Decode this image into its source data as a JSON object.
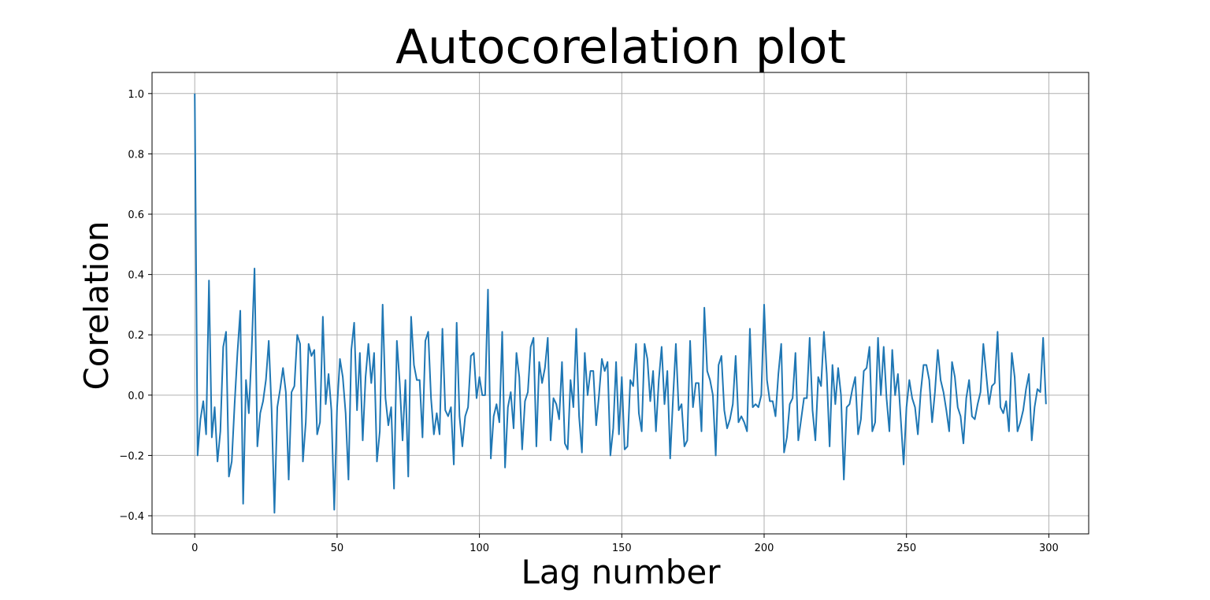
{
  "chart_data": {
    "type": "line",
    "title": "Autocorelation plot",
    "xlabel": "Lag number",
    "ylabel": "Corelation",
    "xlim": [
      -15,
      314
    ],
    "ylim": [
      -0.46,
      1.07
    ],
    "x_ticks": [
      0,
      50,
      100,
      150,
      200,
      250,
      300
    ],
    "y_ticks": [
      -0.4,
      -0.2,
      0.0,
      0.2,
      0.4,
      0.6,
      0.8,
      1.0
    ],
    "x_tick_labels": [
      "0",
      "50",
      "100",
      "150",
      "200",
      "250",
      "300"
    ],
    "y_tick_labels": [
      "−0.4",
      "−0.2",
      "0.0",
      "0.2",
      "0.4",
      "0.6",
      "0.8",
      "1.0"
    ],
    "grid": true,
    "line_color": "#1f77b4",
    "series": [
      {
        "x_start": 0,
        "x_step": 1,
        "values": [
          1.0,
          -0.2,
          -0.08,
          -0.02,
          -0.13,
          0.38,
          -0.14,
          -0.04,
          -0.22,
          -0.12,
          0.16,
          0.21,
          -0.27,
          -0.22,
          -0.03,
          0.14,
          0.28,
          -0.36,
          0.05,
          -0.06,
          0.15,
          0.42,
          -0.17,
          -0.06,
          -0.02,
          0.05,
          0.18,
          -0.05,
          -0.39,
          -0.04,
          0.02,
          0.09,
          0.01,
          -0.28,
          0.01,
          0.03,
          0.2,
          0.17,
          -0.22,
          -0.09,
          0.17,
          0.13,
          0.15,
          -0.13,
          -0.09,
          0.26,
          -0.03,
          0.07,
          -0.05,
          -0.38,
          -0.04,
          0.12,
          0.06,
          -0.06,
          -0.28,
          0.15,
          0.24,
          -0.05,
          0.14,
          -0.15,
          0.06,
          0.17,
          0.04,
          0.14,
          -0.22,
          -0.12,
          0.3,
          -0.01,
          -0.1,
          -0.04,
          -0.31,
          0.18,
          0.04,
          -0.15,
          0.05,
          -0.27,
          0.26,
          0.1,
          0.05,
          0.05,
          -0.14,
          0.18,
          0.21,
          -0.01,
          -0.13,
          -0.06,
          -0.13,
          0.22,
          -0.05,
          -0.07,
          -0.04,
          -0.23,
          0.24,
          -0.07,
          -0.17,
          -0.07,
          -0.04,
          0.13,
          0.14,
          -0.01,
          0.06,
          0.0,
          0.0,
          0.35,
          -0.21,
          -0.07,
          -0.03,
          -0.09,
          0.21,
          -0.24,
          -0.04,
          0.01,
          -0.11,
          0.14,
          0.06,
          -0.18,
          -0.02,
          0.01,
          0.16,
          0.19,
          -0.17,
          0.11,
          0.04,
          0.09,
          0.19,
          -0.15,
          -0.01,
          -0.03,
          -0.08,
          0.11,
          -0.16,
          -0.18,
          0.05,
          -0.04,
          0.22,
          -0.07,
          -0.19,
          0.14,
          0.0,
          0.08,
          0.08,
          -0.1,
          0.0,
          0.12,
          0.08,
          0.11,
          -0.2,
          -0.11,
          0.11,
          -0.13,
          0.06,
          -0.18,
          -0.17,
          0.05,
          0.03,
          0.17,
          -0.06,
          -0.12,
          0.17,
          0.12,
          -0.02,
          0.08,
          -0.12,
          0.05,
          0.16,
          -0.03,
          0.08,
          -0.21,
          -0.01,
          0.17,
          -0.05,
          -0.03,
          -0.17,
          -0.15,
          0.18,
          -0.04,
          0.04,
          0.04,
          -0.12,
          0.29,
          0.08,
          0.05,
          0.0,
          -0.2,
          0.1,
          0.13,
          -0.05,
          -0.11,
          -0.08,
          -0.03,
          0.13,
          -0.09,
          -0.07,
          -0.09,
          -0.12,
          0.22,
          -0.04,
          -0.03,
          -0.04,
          0.0,
          0.3,
          0.05,
          -0.02,
          -0.02,
          -0.07,
          0.07,
          0.17,
          -0.19,
          -0.14,
          -0.03,
          -0.01,
          0.14,
          -0.15,
          -0.08,
          -0.01,
          -0.01,
          0.19,
          -0.05,
          -0.15,
          0.06,
          0.03,
          0.21,
          0.07,
          -0.17,
          0.1,
          -0.03,
          0.09,
          0.0,
          -0.28,
          -0.04,
          -0.03,
          0.02,
          0.06,
          -0.13,
          -0.08,
          0.08,
          0.09,
          0.16,
          -0.12,
          -0.09,
          0.19,
          0.0,
          0.16,
          -0.01,
          -0.12,
          0.15,
          0.0,
          0.07,
          -0.08,
          -0.23,
          -0.04,
          0.05,
          -0.01,
          -0.04,
          -0.13,
          0.01,
          0.1,
          0.1,
          0.05,
          -0.09,
          0.01,
          0.15,
          0.05,
          0.01,
          -0.05,
          -0.12,
          0.11,
          0.06,
          -0.04,
          -0.07,
          -0.16,
          -0.01,
          0.05,
          -0.07,
          -0.08,
          -0.03,
          0.01,
          0.17,
          0.07,
          -0.03,
          0.03,
          0.04,
          0.21,
          -0.04,
          -0.06,
          -0.02,
          -0.12,
          0.14,
          0.06,
          -0.12,
          -0.09,
          -0.05,
          0.02,
          0.07,
          -0.15,
          -0.04,
          0.02,
          0.01,
          0.19,
          -0.03
        ]
      }
    ]
  }
}
